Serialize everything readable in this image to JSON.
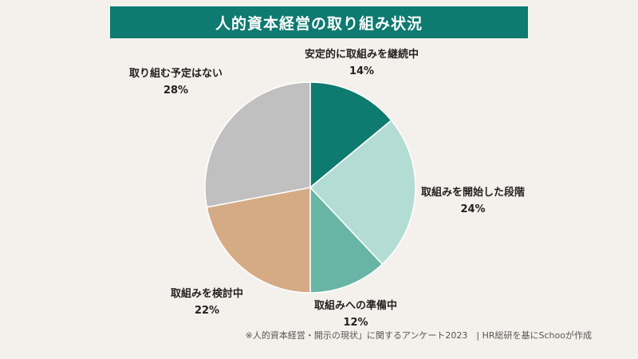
{
  "chart_data": {
    "type": "pie",
    "title": "人的資本経営の取り組み状況",
    "slices": [
      {
        "label": "安定的に取組みを継続中",
        "value": 14,
        "value_label": "14%",
        "color": "#0e7a70"
      },
      {
        "label": "取組みを開始した段階",
        "value": 24,
        "value_label": "24%",
        "color": "#b3ddd4"
      },
      {
        "label": "取組みへの準備中",
        "value": 12,
        "value_label": "12%",
        "color": "#68b5a6"
      },
      {
        "label": "取組みを検討中",
        "value": 22,
        "value_label": "22%",
        "color": "#d5ab86"
      },
      {
        "label": "取り組む予定はない",
        "value": 28,
        "value_label": "28%",
        "color": "#c0c0c0"
      }
    ],
    "start_angle_deg": 0,
    "direction": "clockwise",
    "legend": "none"
  },
  "source_note": "※人的資本経営・開示の現状」に関するアンケート2023　| HR総研を基にSchooが作成"
}
